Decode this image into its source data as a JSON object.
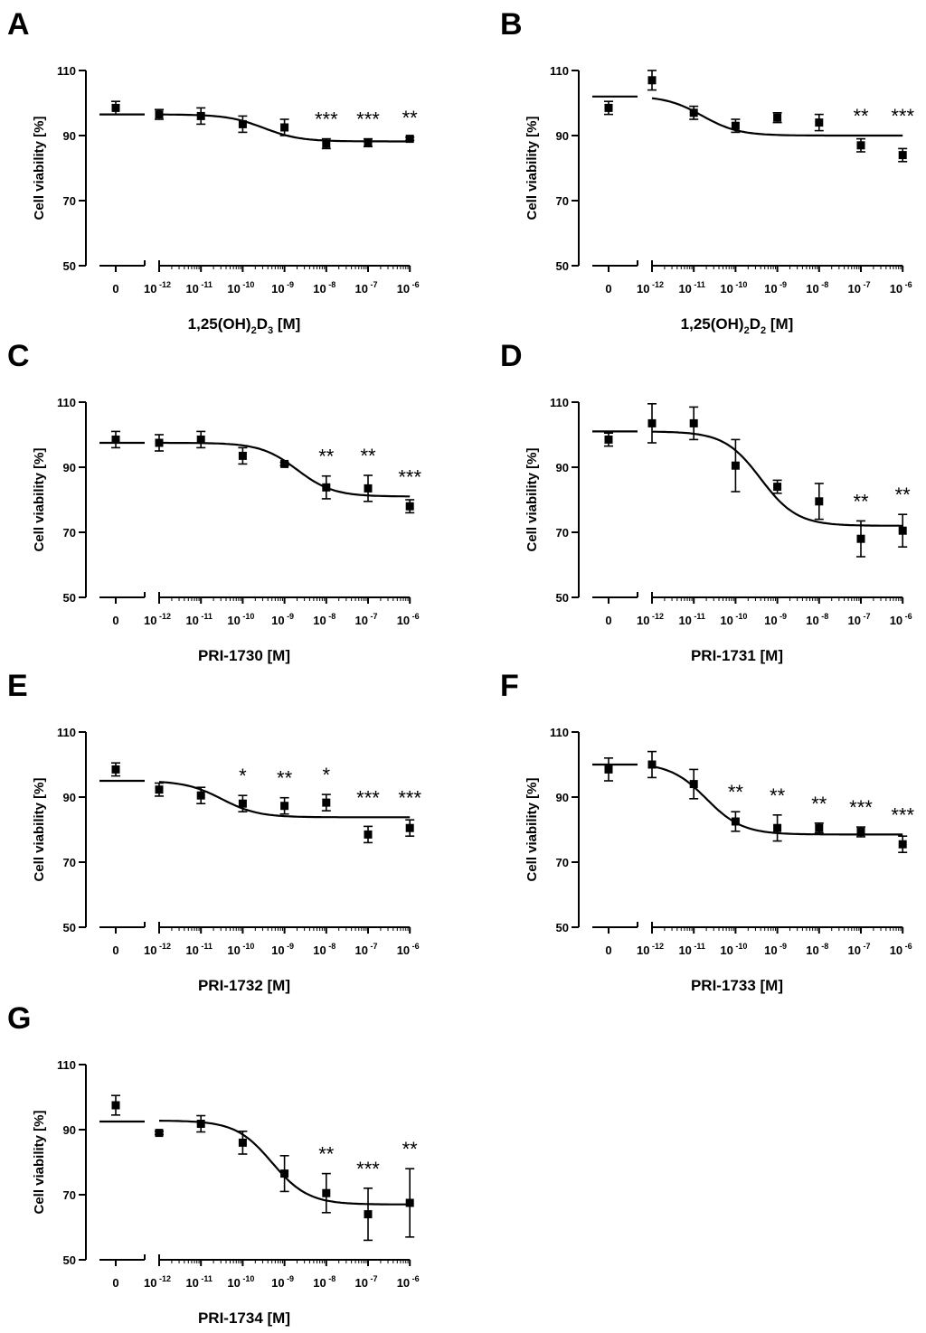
{
  "figure": {
    "y_axis_label": "Cell viability [%]",
    "y_ticks": [
      50,
      70,
      90,
      110
    ],
    "ylim": [
      50,
      110
    ],
    "control_tick_label": "0",
    "x_tick_exponents": [
      "-12",
      "-11",
      "-10",
      "-9",
      "-8",
      "-7",
      "-6"
    ],
    "x_tick_base": "10"
  },
  "chart_data": [
    {
      "panel": "A",
      "type": "scatter",
      "xlabel": {
        "pre": "1,25(OH)",
        "s1": "2",
        "mid": "D",
        "s2": "3",
        "post": "[M]"
      },
      "ylabel": "Cell viability [%]",
      "ylim": [
        50,
        110
      ],
      "control": {
        "x": "0",
        "y": 98.5,
        "err": 2,
        "fit_y": 96.5
      },
      "points": [
        {
          "log_x": -12,
          "y": 96.5,
          "err": 1.5,
          "sig": ""
        },
        {
          "log_x": -11,
          "y": 96.0,
          "err": 2.5,
          "sig": ""
        },
        {
          "log_x": -10,
          "y": 93.5,
          "err": 2.5,
          "sig": ""
        },
        {
          "log_x": -9,
          "y": 92.5,
          "err": 2.5,
          "sig": ""
        },
        {
          "log_x": -8,
          "y": 87.5,
          "err": 1.5,
          "sig": "***"
        },
        {
          "log_x": -7,
          "y": 87.8,
          "err": 1.2,
          "sig": "***"
        },
        {
          "log_x": -6,
          "y": 89.0,
          "err": 0.5,
          "sig": "**"
        }
      ],
      "fit": {
        "top": 96.5,
        "bottom": 88.2,
        "log_ec50": -9.5,
        "hill": 1
      }
    },
    {
      "panel": "B",
      "type": "scatter",
      "xlabel": {
        "pre": "1,25(OH)",
        "s1": "2",
        "mid": "D",
        "s2": "2",
        "post": "[M]"
      },
      "ylabel": "Cell viability [%]",
      "ylim": [
        50,
        110
      ],
      "control": {
        "x": "0",
        "y": 98.5,
        "err": 2,
        "fit_y": 102
      },
      "points": [
        {
          "log_x": -12,
          "y": 107.0,
          "err": 3.0,
          "sig": ""
        },
        {
          "log_x": -11,
          "y": 97.0,
          "err": 2.0,
          "sig": ""
        },
        {
          "log_x": -10,
          "y": 93.0,
          "err": 2.0,
          "sig": ""
        },
        {
          "log_x": -9,
          "y": 95.5,
          "err": 1.5,
          "sig": ""
        },
        {
          "log_x": -8,
          "y": 94.0,
          "err": 2.5,
          "sig": ""
        },
        {
          "log_x": -7,
          "y": 87.0,
          "err": 2.0,
          "sig": "**"
        },
        {
          "log_x": -6,
          "y": 84.0,
          "err": 2.0,
          "sig": "***"
        }
      ],
      "fit": {
        "top": 102.2,
        "bottom": 90.0,
        "log_ec50": -10.8,
        "hill": 1
      }
    },
    {
      "panel": "C",
      "type": "scatter",
      "xlabel": {
        "pre": "PRI-1730",
        "s1": "",
        "mid": "",
        "s2": "",
        "post": "[M]"
      },
      "ylabel": "Cell viability [%]",
      "ylim": [
        50,
        110
      ],
      "control": {
        "x": "0",
        "y": 98.5,
        "err": 2.5,
        "fit_y": 97.5
      },
      "points": [
        {
          "log_x": -12,
          "y": 97.5,
          "err": 2.5,
          "sig": ""
        },
        {
          "log_x": -11,
          "y": 98.5,
          "err": 2.5,
          "sig": ""
        },
        {
          "log_x": -10,
          "y": 93.5,
          "err": 2.5,
          "sig": ""
        },
        {
          "log_x": -9,
          "y": 91.0,
          "err": 0.5,
          "sig": ""
        },
        {
          "log_x": -8,
          "y": 83.8,
          "err": 3.5,
          "sig": "**"
        },
        {
          "log_x": -7,
          "y": 83.5,
          "err": 4.0,
          "sig": "**"
        },
        {
          "log_x": -6,
          "y": 78.0,
          "err": 2.0,
          "sig": "***"
        }
      ],
      "fit": {
        "top": 97.5,
        "bottom": 81.0,
        "log_ec50": -8.7,
        "hill": 1
      }
    },
    {
      "panel": "D",
      "type": "scatter",
      "xlabel": {
        "pre": "PRI-1731",
        "s1": "",
        "mid": "",
        "s2": "",
        "post": "[M]"
      },
      "ylabel": "Cell viability [%]",
      "ylim": [
        50,
        110
      ],
      "control": {
        "x": "0",
        "y": 98.5,
        "err": 2,
        "fit_y": 101
      },
      "points": [
        {
          "log_x": -12,
          "y": 103.5,
          "err": 6.0,
          "sig": ""
        },
        {
          "log_x": -11,
          "y": 103.5,
          "err": 5.0,
          "sig": ""
        },
        {
          "log_x": -10,
          "y": 90.5,
          "err": 8.0,
          "sig": ""
        },
        {
          "log_x": -9,
          "y": 84.0,
          "err": 2.0,
          "sig": ""
        },
        {
          "log_x": -8,
          "y": 79.5,
          "err": 5.5,
          "sig": ""
        },
        {
          "log_x": -7,
          "y": 68.0,
          "err": 5.5,
          "sig": "**"
        },
        {
          "log_x": -6,
          "y": 70.5,
          "err": 5.0,
          "sig": "**"
        }
      ],
      "fit": {
        "top": 101.0,
        "bottom": 72.0,
        "log_ec50": -9.4,
        "hill": 1
      }
    },
    {
      "panel": "E",
      "type": "scatter",
      "xlabel": {
        "pre": "PRI-1732",
        "s1": "",
        "mid": "",
        "s2": "",
        "post": "[M]"
      },
      "ylabel": "Cell viability [%]",
      "ylim": [
        50,
        110
      ],
      "control": {
        "x": "0",
        "y": 98.5,
        "err": 2,
        "fit_y": 95
      },
      "points": [
        {
          "log_x": -12,
          "y": 92.3,
          "err": 2.0,
          "sig": ""
        },
        {
          "log_x": -11,
          "y": 90.5,
          "err": 2.5,
          "sig": ""
        },
        {
          "log_x": -10,
          "y": 88.0,
          "err": 2.5,
          "sig": "*"
        },
        {
          "log_x": -9,
          "y": 87.3,
          "err": 2.5,
          "sig": "**"
        },
        {
          "log_x": -8,
          "y": 88.3,
          "err": 2.5,
          "sig": "*"
        },
        {
          "log_x": -7,
          "y": 78.5,
          "err": 2.5,
          "sig": "***"
        },
        {
          "log_x": -6,
          "y": 80.5,
          "err": 2.5,
          "sig": "***"
        }
      ],
      "fit": {
        "top": 95.0,
        "bottom": 83.8,
        "log_ec50": -10.5,
        "hill": 1
      }
    },
    {
      "panel": "F",
      "type": "scatter",
      "xlabel": {
        "pre": "PRI-1733",
        "s1": "",
        "mid": "",
        "s2": "",
        "post": "[M]"
      },
      "ylabel": "Cell viability [%]",
      "ylim": [
        50,
        110
      ],
      "control": {
        "x": "0",
        "y": 98.5,
        "err": 3.5,
        "fit_y": 100
      },
      "points": [
        {
          "log_x": -12,
          "y": 100.0,
          "err": 4.0,
          "sig": ""
        },
        {
          "log_x": -11,
          "y": 94.0,
          "err": 4.5,
          "sig": ""
        },
        {
          "log_x": -10,
          "y": 82.5,
          "err": 3.0,
          "sig": "**"
        },
        {
          "log_x": -9,
          "y": 80.5,
          "err": 4.0,
          "sig": "**"
        },
        {
          "log_x": -8,
          "y": 80.5,
          "err": 1.5,
          "sig": "**"
        },
        {
          "log_x": -7,
          "y": 79.3,
          "err": 1.5,
          "sig": "***"
        },
        {
          "log_x": -6,
          "y": 75.5,
          "err": 2.5,
          "sig": "***"
        }
      ],
      "fit": {
        "top": 100.5,
        "bottom": 78.5,
        "log_ec50": -10.7,
        "hill": 1
      }
    },
    {
      "panel": "G",
      "type": "scatter",
      "xlabel": {
        "pre": "PRI-1734",
        "s1": "",
        "mid": "",
        "s2": "",
        "post": "[M]"
      },
      "ylabel": "Cell viability [%]",
      "ylim": [
        50,
        110
      ],
      "control": {
        "x": "0",
        "y": 97.5,
        "err": 3,
        "fit_y": 92.5
      },
      "points": [
        {
          "log_x": -12,
          "y": 89.0,
          "err": 0.5,
          "sig": ""
        },
        {
          "log_x": -11,
          "y": 91.8,
          "err": 2.5,
          "sig": ""
        },
        {
          "log_x": -10,
          "y": 86.0,
          "err": 3.5,
          "sig": ""
        },
        {
          "log_x": -9,
          "y": 76.5,
          "err": 5.5,
          "sig": ""
        },
        {
          "log_x": -8,
          "y": 70.5,
          "err": 6.0,
          "sig": "**"
        },
        {
          "log_x": -7,
          "y": 64.0,
          "err": 8.0,
          "sig": "***"
        },
        {
          "log_x": -6,
          "y": 67.5,
          "err": 10.5,
          "sig": "**"
        }
      ],
      "fit": {
        "top": 92.8,
        "bottom": 67.0,
        "log_ec50": -9.3,
        "hill": 1
      }
    }
  ]
}
